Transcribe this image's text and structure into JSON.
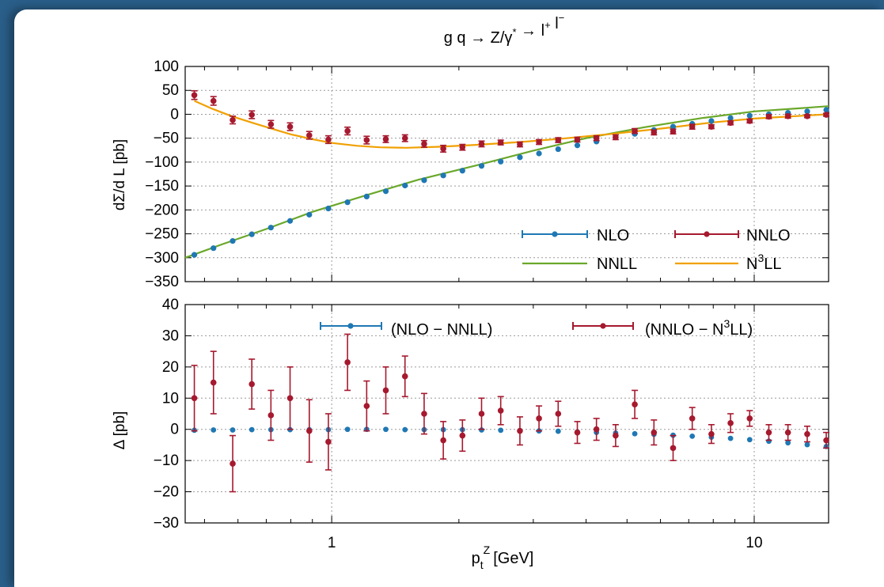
{
  "colors": {
    "nlo": "#1f78b4",
    "nnlo": "#a6192e",
    "nnll": "#6aa82a",
    "n3ll": "#f0a000",
    "frame_bg": "#2a5f8a"
  },
  "chart_data": [
    {
      "type": "line",
      "title": "g q → Z/γ* → l⁺ l⁻",
      "xlabel": "",
      "ylabel": "dΣ/d L [pb]",
      "xscale": "log",
      "xlim": [
        0.45,
        15
      ],
      "ylim": [
        -350,
        100
      ],
      "yticks": [
        100,
        50,
        0,
        -50,
        -100,
        -150,
        -200,
        -250,
        -300,
        -350
      ],
      "yticklabels": [
        "100",
        "50",
        "0",
        "−50",
        "−100",
        "−150",
        "−200",
        "−250",
        "−300",
        "−350"
      ],
      "grid": true,
      "legend_placement": "bottom-right",
      "legend": [
        {
          "name": "NLO",
          "style": "points"
        },
        {
          "name": "NNLO",
          "style": "points"
        },
        {
          "name": "NNLL",
          "style": "line"
        },
        {
          "name": "N³LL",
          "style": "line",
          "label_main": "N",
          "label_sup": "3",
          "label_tail": "LL"
        }
      ],
      "x": [
        0.473,
        0.525,
        0.583,
        0.647,
        0.718,
        0.797,
        0.885,
        0.982,
        1.09,
        1.21,
        1.343,
        1.491,
        1.655,
        1.837,
        2.039,
        2.263,
        2.512,
        2.789,
        3.095,
        3.436,
        3.814,
        4.233,
        4.699,
        5.216,
        5.79,
        6.427,
        7.134,
        7.919,
        8.79,
        9.757,
        10.83,
        12.02,
        13.35,
        14.81
      ],
      "series": [
        {
          "name": "NLO",
          "values": [
            -294,
            -280,
            -265,
            -251,
            -237,
            -223,
            -210,
            -197,
            -184,
            -172,
            -161,
            -149,
            -138,
            -128,
            -118,
            -108,
            -99,
            -90,
            -82,
            -73,
            -65,
            -57,
            -48,
            -41,
            -33,
            -26,
            -20,
            -14,
            -8,
            -3,
            0,
            3,
            6,
            9
          ]
        },
        {
          "name": "NNLO",
          "values": [
            40,
            28,
            -12,
            -1,
            -21,
            -26,
            -44,
            -53,
            -35,
            -54,
            -52,
            -50,
            -62,
            -72,
            -69,
            -62,
            -59,
            -63,
            -58,
            -54,
            -53,
            -50,
            -48,
            -35,
            -38,
            -36,
            -26,
            -26,
            -18,
            -14,
            -5,
            -4,
            -4,
            -1
          ],
          "errors": [
            9,
            9,
            8,
            8,
            8,
            8,
            8,
            8,
            8,
            8,
            7,
            7,
            7,
            7,
            6,
            6,
            5,
            5,
            5,
            5,
            5,
            5,
            5,
            5,
            5,
            5,
            5,
            4,
            4,
            4,
            4,
            4,
            3,
            3
          ]
        },
        {
          "name": "NNLL",
          "x": [
            0.45,
            0.55,
            0.7,
            0.9,
            1.2,
            1.6,
            2.2,
            3,
            4,
            5.5,
            7.5,
            10,
            13,
            15
          ],
          "values": [
            -300,
            -272,
            -240,
            -204,
            -170,
            -137,
            -107,
            -76,
            -50,
            -27,
            -8,
            6,
            13,
            17
          ]
        },
        {
          "name": "N³LL",
          "x": [
            0.473,
            0.52,
            0.58,
            0.65,
            0.72,
            0.8,
            0.9,
            1,
            1.15,
            1.3,
            1.5,
            1.8,
            2.2,
            2.8,
            3.5,
            4.5,
            6,
            8,
            10,
            13,
            15
          ],
          "values": [
            28,
            12,
            -4,
            -18,
            -30,
            -42,
            -52,
            -60,
            -66,
            -69,
            -70,
            -68,
            -64,
            -58,
            -51,
            -42,
            -30,
            -17,
            -9,
            -3,
            0
          ]
        }
      ]
    },
    {
      "type": "scatter",
      "xlabel": "p_t^Z [GeV]",
      "xlabel_main": "p",
      "xlabel_sub": "t",
      "xlabel_sup": "Z",
      "xlabel_unit": "[GeV]",
      "ylabel": "Δ [pb]",
      "xscale": "log",
      "xlim": [
        0.45,
        15
      ],
      "ylim": [
        -30,
        40
      ],
      "xticks": [
        1,
        10
      ],
      "xticklabels": [
        "1",
        "10"
      ],
      "yticks": [
        40,
        30,
        20,
        10,
        0,
        -10,
        -20,
        -30
      ],
      "yticklabels": [
        "40",
        "30",
        "20",
        "10",
        "0",
        "−10",
        "−20",
        "−30"
      ],
      "grid": true,
      "legend_placement": "top",
      "legend": [
        {
          "name": "(NLO − NNLL)"
        },
        {
          "name": "(NNLO − N³LL)",
          "label_main": "(NNLO − N",
          "label_sup": "3",
          "label_tail": "LL)"
        }
      ],
      "x": [
        0.473,
        0.525,
        0.583,
        0.647,
        0.718,
        0.797,
        0.885,
        0.982,
        1.09,
        1.21,
        1.343,
        1.491,
        1.655,
        1.837,
        2.039,
        2.263,
        2.512,
        2.789,
        3.095,
        3.436,
        3.814,
        4.233,
        4.699,
        5.216,
        5.79,
        6.427,
        7.134,
        7.919,
        8.79,
        9.757,
        10.83,
        12.02,
        13.35,
        14.81
      ],
      "series": [
        {
          "name": "(NLO − NNLL)",
          "values": [
            -0.3,
            -0.2,
            -0.2,
            -0.1,
            -0.1,
            -0.1,
            -0.1,
            -0.1,
            0,
            0,
            0,
            -0.1,
            -0.1,
            -0.1,
            -0.1,
            -0.2,
            -0.3,
            -0.4,
            -0.5,
            -0.6,
            -0.8,
            -1,
            -1.2,
            -1.4,
            -1.6,
            -1.9,
            -2.2,
            -2.5,
            -2.9,
            -3.3,
            -3.8,
            -4.3,
            -4.9,
            -5.5
          ]
        },
        {
          "name": "(NNLO − N³LL)",
          "values": [
            10,
            15,
            -11,
            14.5,
            4.5,
            10,
            -0.5,
            -4,
            21.5,
            7.5,
            12.5,
            17,
            5,
            -3.5,
            -2,
            5,
            6,
            -0.5,
            3.5,
            5,
            -1,
            0,
            -2,
            8,
            -1,
            -6,
            3.5,
            -1.5,
            2,
            3.5,
            -1,
            -1,
            -1.5,
            -3.5
          ],
          "errors": [
            10.5,
            10,
            9,
            8,
            8,
            10,
            10,
            9,
            9,
            8,
            7.5,
            6.5,
            6.5,
            6,
            5,
            5,
            4.5,
            4.5,
            4,
            4,
            3.5,
            3.5,
            3.5,
            4.5,
            4,
            4,
            3.5,
            3,
            3,
            2.5,
            2.5,
            2.5,
            2.5,
            2.5
          ]
        }
      ]
    }
  ]
}
